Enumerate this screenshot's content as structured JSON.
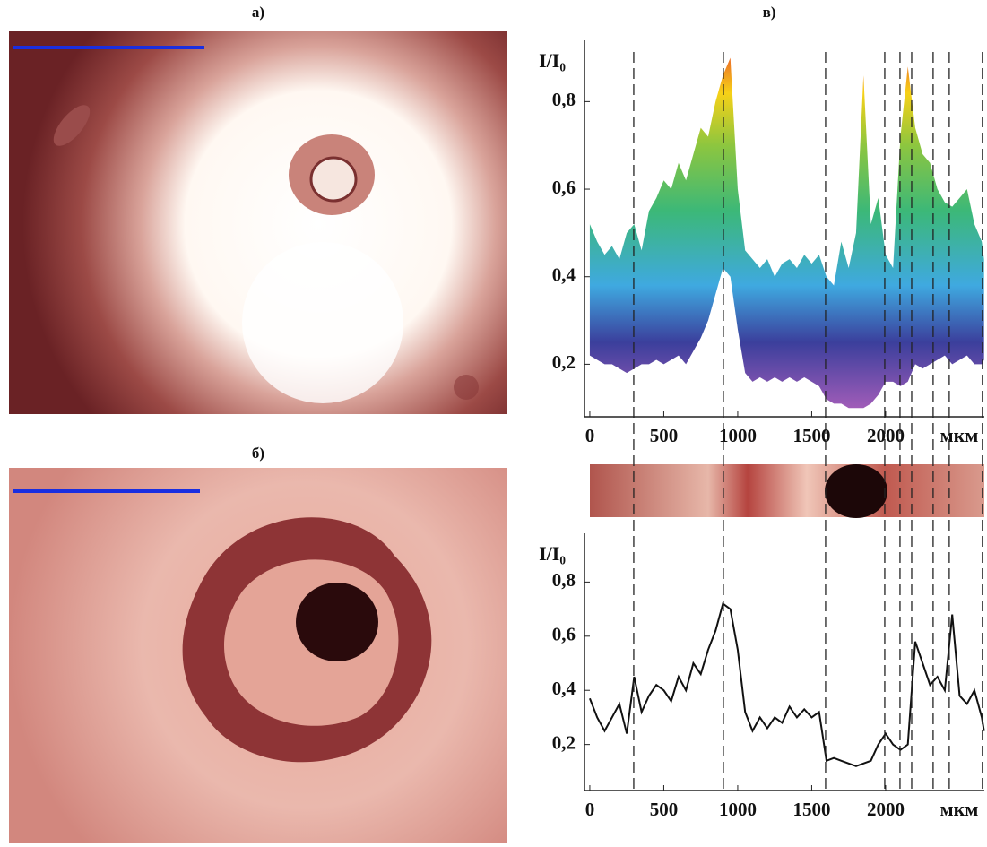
{
  "panel_labels": [
    "а)",
    "б)",
    "в)"
  ],
  "guide_lines": [
    297,
    903,
    1594,
    1994,
    2097,
    2176,
    2321,
    2430,
    2654
  ],
  "chart_data": [
    {
      "type": "range",
      "y_label": "I/I₀",
      "x_label": "мкм",
      "x": [
        0,
        50,
        100,
        150,
        200,
        250,
        300,
        350,
        400,
        450,
        500,
        550,
        600,
        650,
        700,
        750,
        800,
        850,
        900,
        950,
        1000,
        1050,
        1100,
        1150,
        1200,
        1250,
        1300,
        1350,
        1400,
        1450,
        1500,
        1550,
        1600,
        1650,
        1700,
        1750,
        1800,
        1850,
        1900,
        1950,
        2000,
        2050,
        2100,
        2150,
        2200,
        2250,
        2300,
        2350,
        2400,
        2450,
        2500,
        2550,
        2600,
        2650,
        2665
      ],
      "high": [
        0.52,
        0.48,
        0.45,
        0.47,
        0.44,
        0.5,
        0.52,
        0.46,
        0.55,
        0.58,
        0.62,
        0.6,
        0.66,
        0.62,
        0.68,
        0.74,
        0.72,
        0.8,
        0.86,
        0.9,
        0.6,
        0.46,
        0.44,
        0.42,
        0.44,
        0.4,
        0.43,
        0.44,
        0.42,
        0.45,
        0.43,
        0.45,
        0.4,
        0.38,
        0.48,
        0.42,
        0.5,
        0.86,
        0.52,
        0.58,
        0.45,
        0.42,
        0.72,
        0.88,
        0.74,
        0.68,
        0.66,
        0.6,
        0.57,
        0.56,
        0.58,
        0.6,
        0.52,
        0.48,
        0.44
      ],
      "low": [
        0.22,
        0.21,
        0.2,
        0.2,
        0.19,
        0.18,
        0.19,
        0.2,
        0.2,
        0.21,
        0.2,
        0.21,
        0.22,
        0.2,
        0.23,
        0.26,
        0.3,
        0.36,
        0.42,
        0.4,
        0.28,
        0.18,
        0.16,
        0.17,
        0.16,
        0.17,
        0.16,
        0.17,
        0.16,
        0.17,
        0.16,
        0.15,
        0.12,
        0.11,
        0.11,
        0.1,
        0.1,
        0.1,
        0.11,
        0.13,
        0.16,
        0.16,
        0.15,
        0.16,
        0.2,
        0.19,
        0.2,
        0.21,
        0.22,
        0.2,
        0.21,
        0.22,
        0.2,
        0.2,
        0.21
      ],
      "colormap": [
        {
          "value": 0.1,
          "color": "#a05cb8"
        },
        {
          "value": 0.25,
          "color": "#3b3f9c"
        },
        {
          "value": 0.38,
          "color": "#3fa9e0"
        },
        {
          "value": 0.55,
          "color": "#3cb878"
        },
        {
          "value": 0.7,
          "color": "#8dc63f"
        },
        {
          "value": 0.82,
          "color": "#f7d117"
        },
        {
          "value": 0.92,
          "color": "#e8542a"
        }
      ],
      "xlim": [
        -36,
        2667
      ],
      "ylim": [
        0.08,
        0.94
      ],
      "xticks": [
        0,
        500,
        1000,
        1500,
        2000
      ],
      "yticks": [
        {
          "value": 0.2,
          "label": "0,2"
        },
        {
          "value": 0.4,
          "label": "0,4"
        },
        {
          "value": 0.6,
          "label": "0,6"
        },
        {
          "value": 0.8,
          "label": "0,8"
        }
      ]
    },
    {
      "type": "line",
      "y_label": "I/I₀",
      "x_label": "мкм",
      "color": "#111111",
      "x": [
        0,
        50,
        100,
        150,
        200,
        250,
        300,
        350,
        400,
        450,
        500,
        550,
        600,
        650,
        700,
        750,
        800,
        850,
        900,
        950,
        1000,
        1050,
        1100,
        1150,
        1200,
        1250,
        1300,
        1350,
        1400,
        1450,
        1500,
        1550,
        1600,
        1650,
        1700,
        1750,
        1800,
        1850,
        1900,
        1950,
        2000,
        2050,
        2100,
        2150,
        2200,
        2250,
        2300,
        2350,
        2400,
        2450,
        2500,
        2550,
        2600,
        2650,
        2665
      ],
      "values": [
        0.37,
        0.3,
        0.25,
        0.3,
        0.35,
        0.24,
        0.45,
        0.32,
        0.38,
        0.42,
        0.4,
        0.36,
        0.45,
        0.4,
        0.5,
        0.46,
        0.55,
        0.62,
        0.72,
        0.7,
        0.55,
        0.32,
        0.25,
        0.3,
        0.26,
        0.3,
        0.28,
        0.34,
        0.3,
        0.33,
        0.3,
        0.32,
        0.14,
        0.15,
        0.14,
        0.13,
        0.12,
        0.13,
        0.14,
        0.2,
        0.24,
        0.2,
        0.18,
        0.2,
        0.58,
        0.5,
        0.42,
        0.45,
        0.4,
        0.68,
        0.38,
        0.35,
        0.4,
        0.3,
        0.25
      ],
      "xlim": [
        -36,
        2667
      ],
      "ylim": [
        0.03,
        0.98
      ],
      "xticks": [
        0,
        500,
        1000,
        1500,
        2000
      ],
      "yticks": [
        {
          "value": 0.2,
          "label": "0,2"
        },
        {
          "value": 0.4,
          "label": "0,4"
        },
        {
          "value": 0.6,
          "label": "0,6"
        },
        {
          "value": 0.8,
          "label": "0,8"
        }
      ]
    }
  ]
}
